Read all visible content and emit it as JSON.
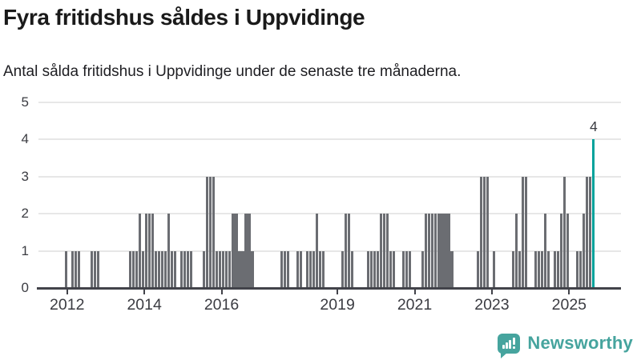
{
  "title": "Fyra fritidshus såldes i Uppvidinge",
  "subtitle": "Antal sålda fritidshus i Uppvidinge under de senaste tre månaderna.",
  "chart_data": {
    "type": "bar",
    "title": "Fyra fritidshus såldes i Uppvidinge",
    "subtitle": "Antal sålda fritidshus i Uppvidinge under de senaste tre månaderna.",
    "x_unit": "month",
    "x_start": "2011-05",
    "x_end": "2025-09",
    "values": [
      0,
      0,
      0,
      0,
      0,
      0,
      0,
      0,
      1,
      0,
      1,
      1,
      1,
      0,
      0,
      0,
      1,
      1,
      1,
      0,
      0,
      0,
      0,
      0,
      0,
      0,
      0,
      0,
      1,
      1,
      1,
      2,
      1,
      2,
      2,
      2,
      1,
      1,
      1,
      1,
      2,
      1,
      1,
      0,
      1,
      1,
      1,
      1,
      0,
      0,
      0,
      1,
      3,
      3,
      3,
      1,
      1,
      1,
      1,
      1,
      2,
      2,
      1,
      1,
      2,
      2,
      1,
      0,
      0,
      0,
      0,
      0,
      0,
      0,
      0,
      1,
      1,
      1,
      0,
      0,
      1,
      1,
      0,
      1,
      1,
      1,
      2,
      1,
      1,
      0,
      0,
      0,
      0,
      0,
      1,
      2,
      2,
      1,
      0,
      0,
      0,
      0,
      1,
      1,
      1,
      1,
      2,
      2,
      2,
      1,
      1,
      0,
      0,
      1,
      1,
      1,
      0,
      0,
      0,
      1,
      2,
      2,
      2,
      2,
      2,
      2,
      2,
      2,
      1,
      0,
      0,
      0,
      0,
      0,
      0,
      0,
      1,
      3,
      3,
      3,
      0,
      1,
      0,
      0,
      0,
      0,
      0,
      1,
      2,
      1,
      3,
      3,
      0,
      0,
      1,
      1,
      1,
      2,
      1,
      0,
      1,
      1,
      2,
      3,
      2,
      0,
      0,
      1,
      1,
      2,
      3,
      3,
      4
    ],
    "highlight_last": true,
    "highlight_value_label": "4",
    "ylim": [
      0,
      5
    ],
    "y_ticks": [
      0,
      1,
      2,
      3,
      4,
      5
    ],
    "x_tick_years": [
      "2012",
      "2014",
      "2016",
      "2019",
      "2021",
      "2023",
      "2025"
    ],
    "grid": "horizontal",
    "legend": "none",
    "pad_right_months": 8,
    "bar_color": "#6b6d72",
    "highlight_color": "#00a29b",
    "grid_color": "#e7e7e7",
    "axis_color": "#42434a",
    "label_color": "#3b3c42"
  },
  "footer": {
    "brand": "Newsworthy",
    "brand_color": "#46a49e",
    "logo_icon": "bar-chart-speech-bubble"
  }
}
